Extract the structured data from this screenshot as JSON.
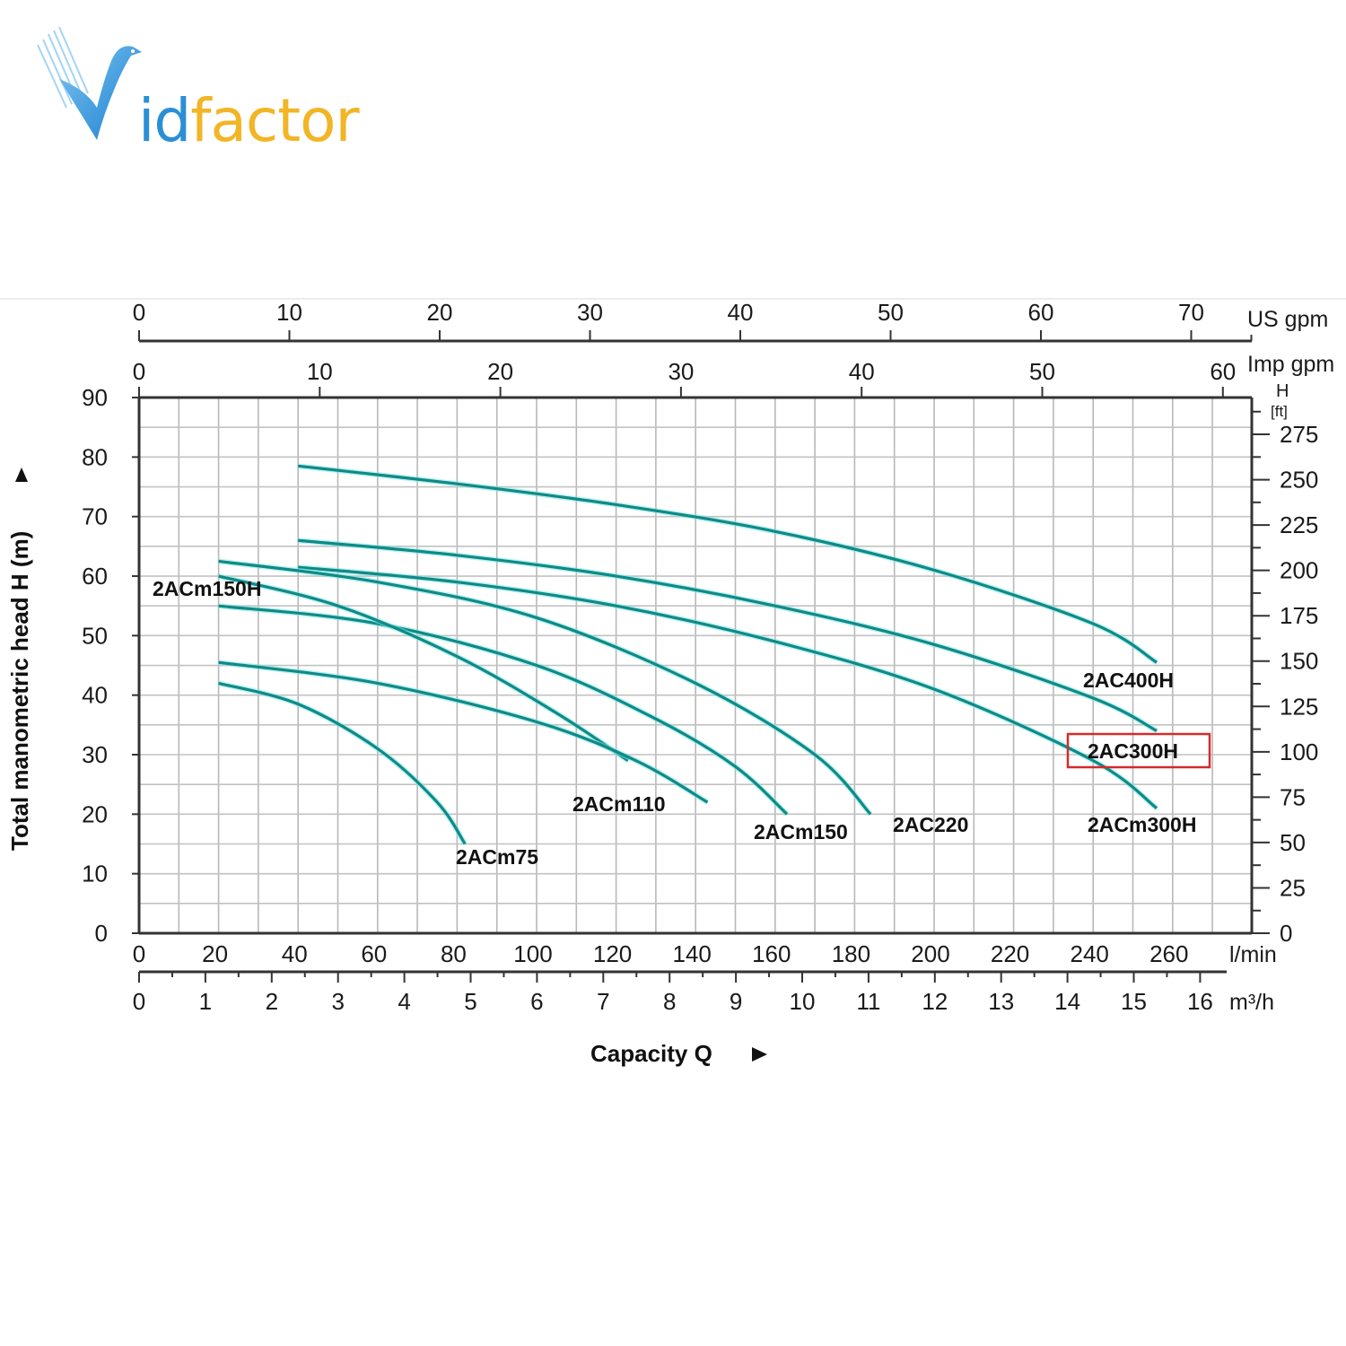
{
  "brand": {
    "logo_prefix": "V",
    "logo_id": "id",
    "logo_factor": "factor",
    "colors": {
      "blue": "#2a8fd6",
      "gold": "#f2b526"
    }
  },
  "chart_data": {
    "type": "line",
    "title": "",
    "xlabel": "Capacity Q",
    "ylabel": "Total manometric head H (m)",
    "secondary_ylabel": "H [ft]",
    "xlim": [
      0,
      280
    ],
    "ylim": [
      0,
      90
    ],
    "grid": true,
    "x_units": {
      "primary": "l/min",
      "primary_ticks": [
        0,
        20,
        40,
        60,
        80,
        100,
        120,
        140,
        160,
        180,
        200,
        220,
        240,
        260
      ],
      "m3h_label": "m³/h",
      "m3h_ticks": [
        0,
        1,
        2,
        3,
        4,
        5,
        6,
        7,
        8,
        9,
        10,
        11,
        12,
        13,
        14,
        15,
        16
      ],
      "imp_gpm_label": "Imp gpm",
      "imp_gpm_ticks": [
        0,
        10,
        20,
        30,
        40,
        50,
        60
      ],
      "us_gpm_label": "US gpm",
      "us_gpm_ticks": [
        0,
        10,
        20,
        30,
        40,
        50,
        60,
        70
      ]
    },
    "y_ticks_m": [
      0,
      10,
      20,
      30,
      40,
      50,
      60,
      70,
      80,
      90
    ],
    "y_ticks_ft": [
      0,
      25,
      50,
      75,
      100,
      125,
      150,
      175,
      200,
      225,
      250,
      275
    ],
    "curve_color": "#0f8a86",
    "series": [
      {
        "name": "2AC400H",
        "points": [
          [
            40,
            78.5
          ],
          [
            80,
            75.5
          ],
          [
            120,
            72
          ],
          [
            160,
            67.5
          ],
          [
            200,
            61
          ],
          [
            240,
            52
          ],
          [
            256,
            45.5
          ]
        ]
      },
      {
        "name": "2AC300H",
        "points": [
          [
            40,
            66
          ],
          [
            80,
            63.5
          ],
          [
            120,
            60
          ],
          [
            160,
            55
          ],
          [
            200,
            48.5
          ],
          [
            240,
            39.5
          ],
          [
            256,
            34
          ]
        ],
        "highlighted": true
      },
      {
        "name": "2ACm300H",
        "points": [
          [
            40,
            61.5
          ],
          [
            80,
            59
          ],
          [
            120,
            55
          ],
          [
            160,
            49
          ],
          [
            200,
            41
          ],
          [
            240,
            29
          ],
          [
            256,
            21
          ]
        ]
      },
      {
        "name": "2AC220",
        "points": [
          [
            20,
            62.5
          ],
          [
            60,
            59
          ],
          [
            100,
            53
          ],
          [
            140,
            42
          ],
          [
            170,
            30
          ],
          [
            184,
            20
          ]
        ]
      },
      {
        "name": "2ACm150",
        "points": [
          [
            20,
            55
          ],
          [
            60,
            52
          ],
          [
            100,
            45
          ],
          [
            130,
            36
          ],
          [
            150,
            28
          ],
          [
            163,
            20
          ]
        ]
      },
      {
        "name": "2ACm150H",
        "points": [
          [
            20,
            60
          ],
          [
            50,
            55
          ],
          [
            80,
            46.5
          ],
          [
            105,
            37
          ],
          [
            123,
            29
          ]
        ]
      },
      {
        "name": "2ACm110",
        "points": [
          [
            20,
            45.5
          ],
          [
            60,
            42
          ],
          [
            100,
            35.5
          ],
          [
            125,
            29
          ],
          [
            143,
            22
          ]
        ]
      },
      {
        "name": "2ACm75",
        "points": [
          [
            20,
            42
          ],
          [
            40,
            38.5
          ],
          [
            60,
            31
          ],
          [
            75,
            22
          ],
          [
            82,
            15
          ]
        ]
      }
    ]
  },
  "labels": {
    "2AC400H": "2AC400H",
    "2AC300H": "2AC300H",
    "2ACm300H": "2ACm300H",
    "2AC220": "2AC220",
    "2ACm150": "2ACm150",
    "2ACm150H": "2ACm150H",
    "2ACm110": "2ACm110",
    "2ACm75": "2ACm75"
  },
  "axis": {
    "y_title": "Total manometric head H (m)",
    "x_title": "Capacity Q",
    "ft_header_h": "H",
    "ft_header_unit": "[ft]",
    "lmin": "l/min",
    "m3h": "m³/h",
    "imp": "Imp gpm",
    "us": "US gpm"
  },
  "highlight": {
    "color": "#d42a2a",
    "label": "2AC300H"
  }
}
